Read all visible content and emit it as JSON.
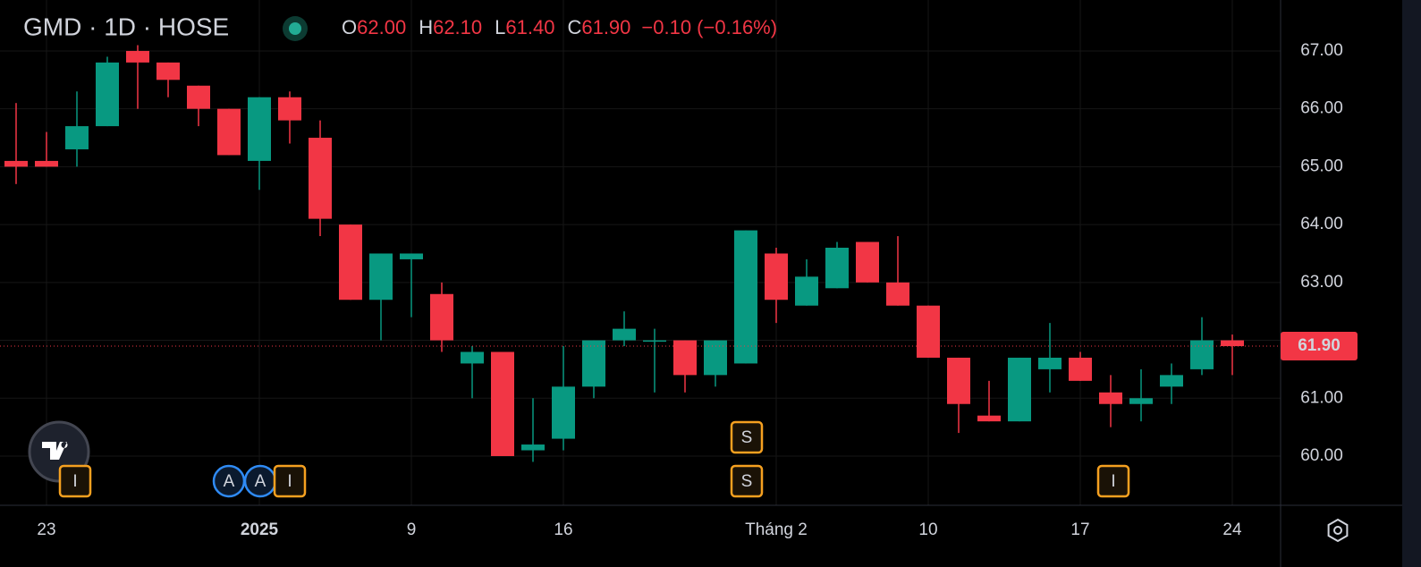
{
  "chart_data": {
    "type": "candlestick",
    "title": "GMD · 1D · HOSE",
    "ohlc_legend": [
      {
        "label": "O",
        "value": "62.00"
      },
      {
        "label": "H",
        "value": "62.10"
      },
      {
        "label": "L",
        "value": "61.40"
      },
      {
        "label": "C",
        "value": "61.90"
      }
    ],
    "change": "−0.10 (−0.16%)",
    "categories": [
      null,
      "23",
      null,
      null,
      null,
      null,
      null,
      null,
      "2025",
      null,
      null,
      null,
      null,
      "9",
      null,
      null,
      null,
      null,
      "16",
      null,
      null,
      null,
      null,
      null,
      null,
      "Tháng 2",
      null,
      null,
      null,
      null,
      "10",
      null,
      null,
      null,
      null,
      "17",
      null,
      null,
      null,
      null,
      "24"
    ],
    "open": [
      65.1,
      65.1,
      65.3,
      65.7,
      67.0,
      66.8,
      66.4,
      66.0,
      65.1,
      66.2,
      65.5,
      64.0,
      62.7,
      63.4,
      62.8,
      61.6,
      61.8,
      60.1,
      60.3,
      61.2,
      62.0,
      62.0,
      62.0,
      61.4,
      61.6,
      63.5,
      62.6,
      62.9,
      63.7,
      63.0,
      62.6,
      61.7,
      60.7,
      60.6,
      61.5,
      61.7,
      61.1,
      60.9,
      61.2,
      61.5,
      62.0
    ],
    "high": [
      66.1,
      65.6,
      66.3,
      66.9,
      67.1,
      66.8,
      66.4,
      66.0,
      66.2,
      66.3,
      65.8,
      64.0,
      63.5,
      63.5,
      63.0,
      61.9,
      61.8,
      61.0,
      61.9,
      62.0,
      62.5,
      62.2,
      62.0,
      62.0,
      63.9,
      63.6,
      63.4,
      63.7,
      63.7,
      63.8,
      62.6,
      61.7,
      61.3,
      61.7,
      62.3,
      61.8,
      61.4,
      61.5,
      61.6,
      62.4,
      62.1
    ],
    "low": [
      64.7,
      65.0,
      65.0,
      65.7,
      66.0,
      66.2,
      65.7,
      65.2,
      64.6,
      65.4,
      63.8,
      62.7,
      62.0,
      62.4,
      61.8,
      61.0,
      60.0,
      59.9,
      60.1,
      61.0,
      61.9,
      61.1,
      61.1,
      61.2,
      61.6,
      62.3,
      62.6,
      62.9,
      63.0,
      62.6,
      61.7,
      60.4,
      60.6,
      60.6,
      61.1,
      61.3,
      60.5,
      60.6,
      60.9,
      61.4,
      61.4
    ],
    "close": [
      65.0,
      65.0,
      65.7,
      66.8,
      66.8,
      66.5,
      66.0,
      65.2,
      66.2,
      65.8,
      64.1,
      62.7,
      63.5,
      63.5,
      62.0,
      61.8,
      60.0,
      60.2,
      61.2,
      62.0,
      62.2,
      62.0,
      61.4,
      62.0,
      63.9,
      62.7,
      63.1,
      63.6,
      63.0,
      62.6,
      61.7,
      60.9,
      60.6,
      61.7,
      61.7,
      61.3,
      60.9,
      61.0,
      61.4,
      62.0,
      61.9
    ],
    "up_color": "#089981",
    "down_color": "#f23645",
    "ylim": [
      59.15,
      67.88
    ],
    "yticks": [
      {
        "value": 60,
        "label": "60.00"
      },
      {
        "value": 61,
        "label": "61.00"
      },
      {
        "value": 62,
        "label": "62.00"
      },
      {
        "value": 63,
        "label": "63.00"
      },
      {
        "value": 64,
        "label": "64.00"
      },
      {
        "value": 65,
        "label": "65.00"
      },
      {
        "value": 66,
        "label": "66.00"
      },
      {
        "value": 67,
        "label": "67.00"
      }
    ],
    "last_price": {
      "value": 61.9,
      "label": "61.90"
    },
    "events": [
      "I",
      "A",
      "A",
      "I",
      "S",
      "S",
      "I"
    ],
    "grid": true
  }
}
